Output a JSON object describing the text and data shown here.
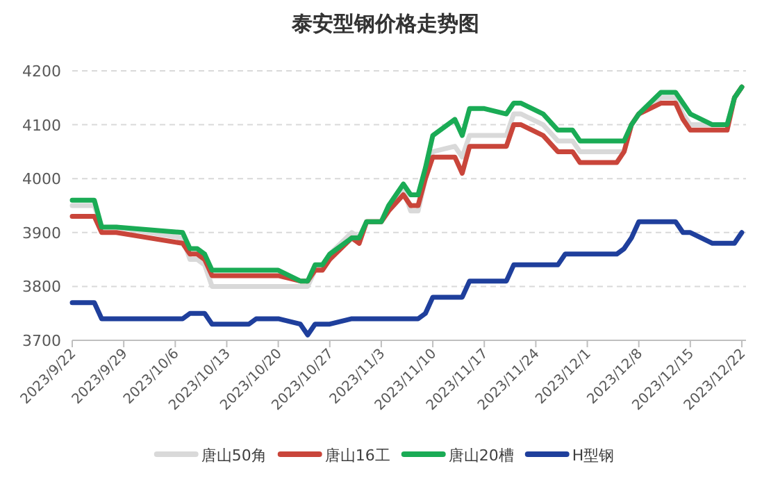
{
  "chart_data": {
    "type": "line",
    "title": "泰安型钢价格走势图",
    "x": [
      "2023-09-22",
      "2023-09-25",
      "2023-09-26",
      "2023-09-28",
      "2023-10-07",
      "2023-10-08",
      "2023-10-09",
      "2023-10-10",
      "2023-10-11",
      "2023-10-16",
      "2023-10-17",
      "2023-10-20",
      "2023-10-23",
      "2023-10-24",
      "2023-10-25",
      "2023-10-26",
      "2023-10-27",
      "2023-10-30",
      "2023-10-31",
      "2023-11-01",
      "2023-11-03",
      "2023-11-04",
      "2023-11-06",
      "2023-11-07",
      "2023-11-08",
      "2023-11-09",
      "2023-11-10",
      "2023-11-13",
      "2023-11-14",
      "2023-11-15",
      "2023-11-17",
      "2023-11-20",
      "2023-11-21",
      "2023-11-22",
      "2023-11-25",
      "2023-11-27",
      "2023-11-28",
      "2023-11-29",
      "2023-11-30",
      "2023-12-05",
      "2023-12-06",
      "2023-12-07",
      "2023-12-08",
      "2023-12-11",
      "2023-12-13",
      "2023-12-14",
      "2023-12-15",
      "2023-12-18",
      "2023-12-20",
      "2023-12-21",
      "2023-12-22"
    ],
    "series": [
      {
        "name": "唐山50角",
        "color": "#d9d9d9",
        "values": [
          3950,
          3950,
          3910,
          3910,
          3890,
          3850,
          3850,
          3840,
          3800,
          3800,
          3800,
          3800,
          3800,
          3800,
          3830,
          3840,
          3860,
          3900,
          3890,
          3920,
          3920,
          3940,
          3980,
          3940,
          3940,
          4000,
          4050,
          4060,
          4040,
          4080,
          4080,
          4080,
          4120,
          4120,
          4100,
          4070,
          4070,
          4070,
          4050,
          4050,
          4050,
          4100,
          4120,
          4150,
          4150,
          4120,
          4100,
          4100,
          4100,
          4150,
          4170
        ]
      },
      {
        "name": "唐山16工",
        "color": "#c9453a",
        "values": [
          3930,
          3930,
          3900,
          3900,
          3880,
          3860,
          3860,
          3850,
          3820,
          3820,
          3820,
          3820,
          3810,
          3810,
          3830,
          3830,
          3850,
          3890,
          3880,
          3920,
          3920,
          3940,
          3970,
          3950,
          3950,
          4000,
          4040,
          4040,
          4010,
          4060,
          4060,
          4060,
          4100,
          4100,
          4080,
          4050,
          4050,
          4050,
          4030,
          4030,
          4050,
          4100,
          4120,
          4140,
          4140,
          4110,
          4090,
          4090,
          4090,
          4150,
          4170
        ]
      },
      {
        "name": "唐山20槽",
        "color": "#1aab55",
        "values": [
          3960,
          3960,
          3910,
          3910,
          3900,
          3870,
          3870,
          3860,
          3830,
          3830,
          3830,
          3830,
          3810,
          3810,
          3840,
          3840,
          3860,
          3890,
          3890,
          3920,
          3920,
          3950,
          3990,
          3970,
          3970,
          4020,
          4080,
          4110,
          4080,
          4130,
          4130,
          4120,
          4140,
          4140,
          4120,
          4090,
          4090,
          4090,
          4070,
          4070,
          4070,
          4100,
          4120,
          4160,
          4160,
          4140,
          4120,
          4100,
          4100,
          4150,
          4170
        ]
      },
      {
        "name": "H型钢",
        "color": "#1f3f9c",
        "values": [
          3770,
          3770,
          3740,
          3740,
          3740,
          3750,
          3750,
          3750,
          3730,
          3730,
          3740,
          3740,
          3730,
          3710,
          3730,
          3730,
          3730,
          3740,
          3740,
          3740,
          3740,
          3740,
          3740,
          3740,
          3740,
          3750,
          3780,
          3780,
          3780,
          3810,
          3810,
          3810,
          3840,
          3840,
          3840,
          3840,
          3860,
          3860,
          3860,
          3860,
          3870,
          3890,
          3920,
          3920,
          3920,
          3900,
          3900,
          3880,
          3880,
          3880,
          3900
        ]
      }
    ],
    "xlim": [
      "2023-09-22",
      "2023-12-22"
    ],
    "xticks": [
      {
        "value": "2023-09-22",
        "label": "2023/9/22"
      },
      {
        "value": "2023-09-29",
        "label": "2023/9/29"
      },
      {
        "value": "2023-10-06",
        "label": "2023/10/6"
      },
      {
        "value": "2023-10-13",
        "label": "2023/10/13"
      },
      {
        "value": "2023-10-20",
        "label": "2023/10/20"
      },
      {
        "value": "2023-10-27",
        "label": "2023/10/27"
      },
      {
        "value": "2023-11-03",
        "label": "2023/11/3"
      },
      {
        "value": "2023-11-10",
        "label": "2023/11/10"
      },
      {
        "value": "2023-11-17",
        "label": "2023/11/17"
      },
      {
        "value": "2023-11-24",
        "label": "2023/11/24"
      },
      {
        "value": "2023-12-01",
        "label": "2023/12/1"
      },
      {
        "value": "2023-12-08",
        "label": "2023/12/8"
      },
      {
        "value": "2023-12-15",
        "label": "2023/12/15"
      },
      {
        "value": "2023-12-22",
        "label": "2023/12/22"
      }
    ],
    "ylim": [
      3700,
      4200
    ],
    "yticks": [
      3700,
      3800,
      3900,
      4000,
      4100,
      4200
    ],
    "grid": "y",
    "legend": "bottom",
    "marker": "none",
    "line_style": "solid"
  }
}
